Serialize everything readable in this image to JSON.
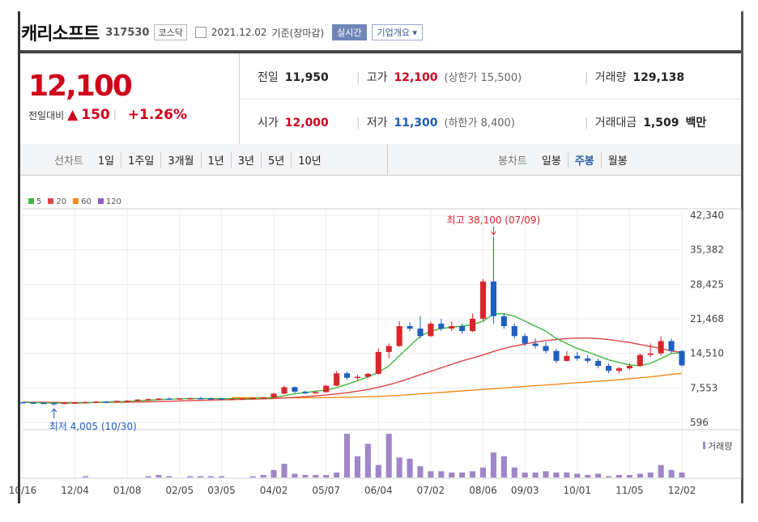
{
  "header": {
    "name": "캐리소프트",
    "code": "317530",
    "market": "코스닥",
    "date": "2021.12.02",
    "basis": "기준(장마감)",
    "realtime": "실시간",
    "company": "기업개요"
  },
  "quote": {
    "price": "12,100",
    "change_label": "전일대비",
    "change": "150",
    "change_pct": "+1.26%",
    "prev_label": "전일",
    "prev": "11,950",
    "high_label": "고가",
    "high": "12,100",
    "upper_limit": "(상한가 15,500)",
    "volume_label": "거래량",
    "volume": "129,138",
    "open_label": "시가",
    "open": "12,000",
    "low_label": "저가",
    "low": "11,300",
    "lower_limit": "(하한가 8,400)",
    "amount_label": "거래대금",
    "amount": "1,509",
    "amount_unit": "백만"
  },
  "periods": {
    "label": "선차트",
    "items": [
      "1일",
      "1주일",
      "3개월",
      "1년",
      "3년",
      "5년",
      "10년"
    ],
    "candle_label": "봉차트",
    "candle_items": [
      "일봉",
      "주봉",
      "월봉"
    ],
    "candle_active": "주봉"
  },
  "legend": [
    {
      "name": "5",
      "color": "#3fb83f"
    },
    {
      "name": "20",
      "color": "#e04444"
    },
    {
      "name": "60",
      "color": "#f08c1c"
    },
    {
      "name": "120",
      "color": "#8e5cc4"
    }
  ],
  "chart_data": {
    "type": "candlestick",
    "y_ticks": [
      "42,340",
      "35,382",
      "28,425",
      "21,468",
      "14,510",
      "7,553",
      "596"
    ],
    "ylim": [
      596,
      42340
    ],
    "x_ticks": [
      "10/16",
      "12/04",
      "01/08",
      "02/05",
      "03/05",
      "04/02",
      "05/07",
      "06/04",
      "07/02",
      "08/06",
      "09/03",
      "10/01",
      "11/05",
      "12/02"
    ],
    "high_annotation": "최고 38,100 (07/09)",
    "low_annotation": "최저 4,005 (10/30)",
    "volume_label": "거래량",
    "candles": [
      [
        4700,
        4700,
        4500,
        4600
      ],
      [
        4600,
        4700,
        4450,
        4550
      ],
      [
        4550,
        4650,
        4400,
        4500
      ],
      [
        4500,
        4600,
        4005,
        4400
      ],
      [
        4400,
        4600,
        4300,
        4550
      ],
      [
        4550,
        4700,
        4450,
        4600
      ],
      [
        4600,
        4800,
        4500,
        4700
      ],
      [
        4700,
        4900,
        4600,
        4800
      ],
      [
        4800,
        4900,
        4650,
        4750
      ],
      [
        4750,
        5000,
        4700,
        4950
      ],
      [
        4950,
        5100,
        4800,
        5000
      ],
      [
        5000,
        5300,
        4900,
        5200
      ],
      [
        5200,
        5400,
        5050,
        5300
      ],
      [
        5300,
        5500,
        5150,
        5400
      ],
      [
        5400,
        5600,
        5200,
        5350
      ],
      [
        5350,
        5500,
        5200,
        5450
      ],
      [
        5450,
        5600,
        5300,
        5500
      ],
      [
        5500,
        5700,
        5350,
        5450
      ],
      [
        5450,
        5600,
        5300,
        5400
      ],
      [
        5400,
        5500,
        5200,
        5300
      ],
      [
        5300,
        5450,
        5150,
        5350
      ],
      [
        5350,
        5500,
        5200,
        5450
      ],
      [
        5450,
        5600,
        5300,
        5550
      ],
      [
        5550,
        5700,
        5400,
        5650
      ],
      [
        5650,
        6600,
        5600,
        6400
      ],
      [
        6400,
        8000,
        6300,
        7700
      ],
      [
        7700,
        7900,
        6500,
        6800
      ],
      [
        6800,
        7000,
        6300,
        6500
      ],
      [
        6500,
        6900,
        6300,
        6700
      ],
      [
        6700,
        8200,
        6600,
        8000
      ],
      [
        8000,
        11000,
        7900,
        10500
      ],
      [
        10500,
        10800,
        9200,
        9600
      ],
      [
        9600,
        10200,
        9000,
        9800
      ],
      [
        9800,
        10600,
        9500,
        10400
      ],
      [
        10400,
        15500,
        10200,
        14800
      ],
      [
        14800,
        16500,
        13500,
        16000
      ],
      [
        16000,
        21000,
        15800,
        20000
      ],
      [
        20000,
        20800,
        19000,
        19500
      ],
      [
        19500,
        22000,
        17500,
        18000
      ],
      [
        18000,
        21000,
        17800,
        20500
      ],
      [
        20500,
        21500,
        19000,
        19500
      ],
      [
        19500,
        21000,
        19000,
        20000
      ],
      [
        20000,
        20500,
        18500,
        19000
      ],
      [
        19000,
        22500,
        18800,
        21500
      ],
      [
        21500,
        29500,
        21000,
        29000
      ],
      [
        29000,
        38100,
        20500,
        22000
      ],
      [
        22000,
        22500,
        19500,
        20000
      ],
      [
        20000,
        20500,
        17500,
        18000
      ],
      [
        18000,
        18500,
        16000,
        16500
      ],
      [
        16500,
        17500,
        15500,
        16000
      ],
      [
        16000,
        16800,
        14500,
        15000
      ],
      [
        15000,
        15500,
        12500,
        13000
      ],
      [
        13000,
        15000,
        12800,
        14000
      ],
      [
        14000,
        14800,
        13000,
        13500
      ],
      [
        13500,
        14200,
        12500,
        13000
      ],
      [
        13000,
        13500,
        11500,
        12000
      ],
      [
        12000,
        12500,
        10500,
        11000
      ],
      [
        11000,
        11800,
        10500,
        11500
      ],
      [
        11500,
        12500,
        11200,
        12000
      ],
      [
        12000,
        14500,
        11800,
        14200
      ],
      [
        14200,
        16500,
        13800,
        14500
      ],
      [
        14500,
        18000,
        14000,
        17000
      ],
      [
        17000,
        17500,
        14500,
        15000
      ],
      [
        15000,
        15200,
        11800,
        12100
      ]
    ],
    "ma5": [
      4650,
      4600,
      4550,
      4500,
      4480,
      4500,
      4550,
      4650,
      4700,
      4750,
      4850,
      4950,
      5050,
      5200,
      5300,
      5350,
      5400,
      5420,
      5420,
      5400,
      5380,
      5380,
      5400,
      5450,
      5650,
      6000,
      6400,
      6600,
      6900,
      7100,
      7600,
      8300,
      9000,
      9800,
      10700,
      12000,
      14000,
      16000,
      18000,
      19000,
      19500,
      19800,
      20000,
      20300,
      21000,
      22500,
      22500,
      22000,
      21000,
      20000,
      19000,
      17500,
      16500,
      15500,
      14800,
      14000,
      13200,
      12700,
      12200,
      12000,
      12500,
      13500,
      14500,
      14600
    ],
    "ma20": [
      4700,
      4680,
      4660,
      4640,
      4620,
      4610,
      4610,
      4620,
      4640,
      4660,
      4690,
      4720,
      4760,
      4810,
      4870,
      4930,
      4990,
      5050,
      5110,
      5160,
      5200,
      5250,
      5300,
      5350,
      5420,
      5530,
      5650,
      5800,
      5950,
      6120,
      6350,
      6600,
      6900,
      7250,
      7700,
      8200,
      8800,
      9500,
      10200,
      10900,
      11600,
      12300,
      13000,
      13600,
      14200,
      14900,
      15500,
      16000,
      16400,
      16800,
      17100,
      17300,
      17500,
      17600,
      17600,
      17500,
      17300,
      17000,
      16700,
      16300,
      15900,
      15500,
      15000,
      14700
    ],
    "ma60": [
      null,
      null,
      null,
      null,
      null,
      null,
      null,
      null,
      null,
      null,
      null,
      null,
      null,
      null,
      null,
      null,
      null,
      null,
      null,
      null,
      5600,
      5600,
      5590,
      5580,
      5570,
      5560,
      5560,
      5570,
      5590,
      5610,
      5640,
      5680,
      5720,
      5780,
      5850,
      5950,
      6050,
      6200,
      6350,
      6500,
      6650,
      6800,
      6950,
      7100,
      7250,
      7400,
      7550,
      7700,
      7850,
      8000,
      8150,
      8300,
      8450,
      8600,
      8750,
      8900,
      9050,
      9200,
      9400,
      9600,
      9800,
      10000,
      10300,
      10500
    ],
    "volume": [
      0,
      0,
      0,
      0,
      0,
      0,
      1,
      0,
      0,
      0,
      0,
      0,
      1,
      2,
      1,
      0,
      1,
      1,
      1,
      1,
      0,
      0,
      1,
      2,
      6,
      11,
      3,
      2,
      2,
      2,
      4,
      35,
      17,
      27,
      10,
      35,
      16,
      15,
      9,
      5,
      5,
      4,
      4,
      5,
      8,
      20,
      17,
      8,
      4,
      4,
      5,
      4,
      4,
      3,
      2,
      3,
      1,
      2,
      2,
      3,
      4,
      10,
      6,
      4
    ]
  }
}
